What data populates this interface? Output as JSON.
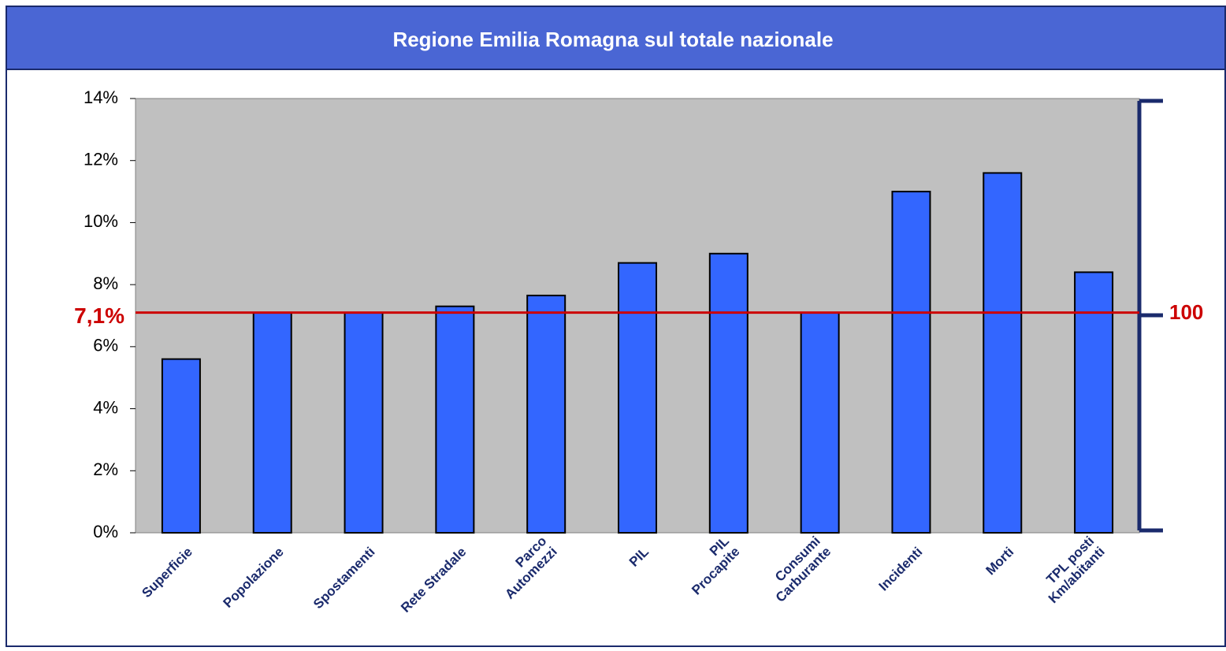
{
  "chart_data": {
    "type": "bar",
    "title": "Regione Emilia Romagna sul totale nazionale",
    "categories": [
      "Superficie",
      "Popolazione",
      "Spostamenti",
      "Rete Stradale",
      "Parco\nAutomezzi",
      "PIL",
      "PIL\nProcapite",
      "Consumi\nCarburante",
      "Incidenti",
      "Morti",
      "TPL posti\nKm/abitanti"
    ],
    "values": [
      5.6,
      7.1,
      7.1,
      7.3,
      7.65,
      8.7,
      9.0,
      7.1,
      11.0,
      11.6,
      8.4
    ],
    "color": "#3366ff",
    "ylim": [
      0,
      14
    ],
    "yticks": [
      {
        "value": 0,
        "label": "0%"
      },
      {
        "value": 2,
        "label": "2%"
      },
      {
        "value": 4,
        "label": "4%"
      },
      {
        "value": 6,
        "label": "6%"
      },
      {
        "value": 8,
        "label": "8%"
      },
      {
        "value": 10,
        "label": "10%"
      },
      {
        "value": 12,
        "label": "12%"
      },
      {
        "value": 14,
        "label": "14%"
      }
    ],
    "reference_line": {
      "value": 7.1,
      "label": "7,1%",
      "right_label": "100",
      "color": "#cc0000"
    },
    "grid": false
  }
}
